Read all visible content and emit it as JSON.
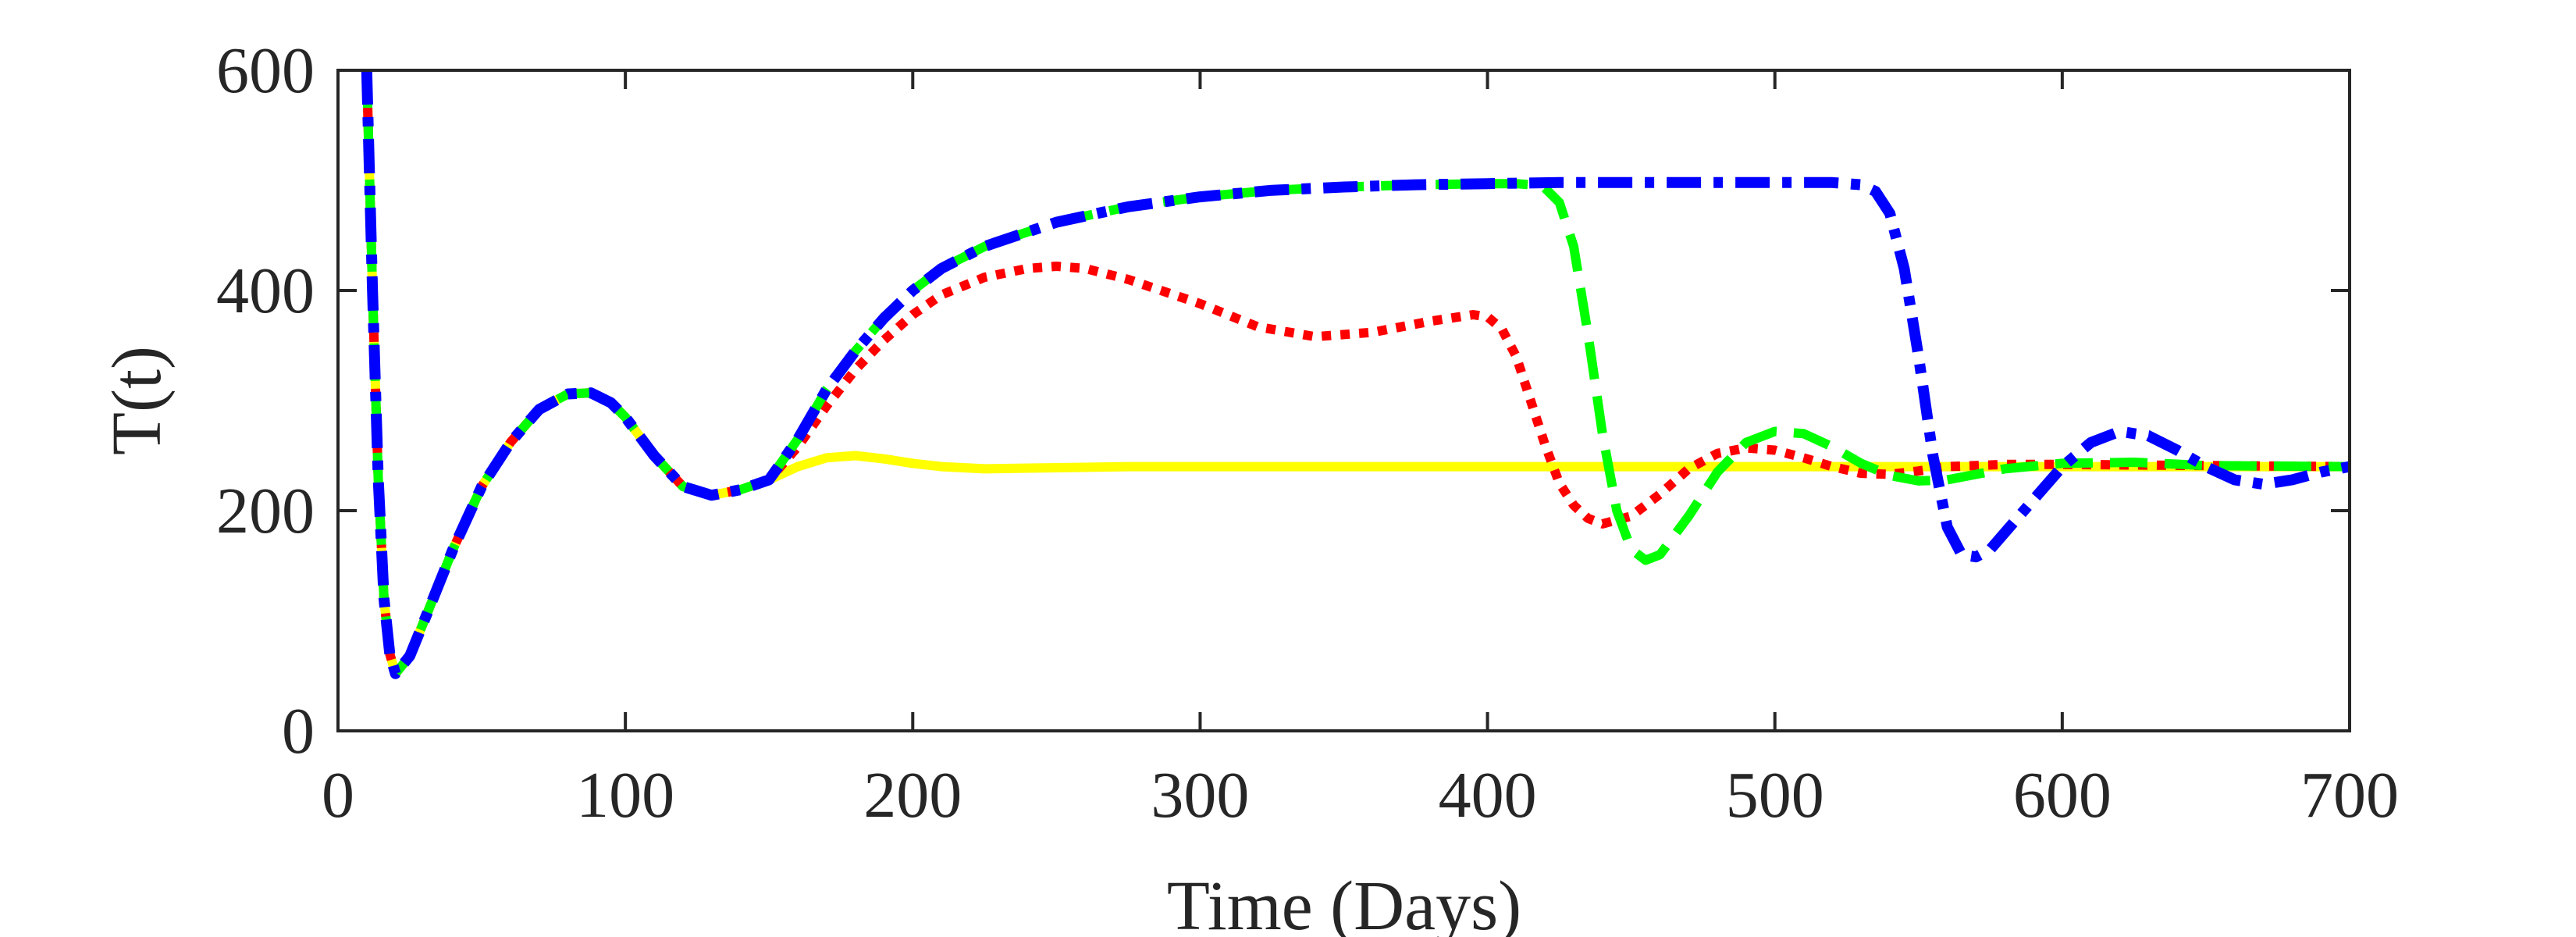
{
  "chart_data": {
    "type": "line",
    "title": "",
    "xlabel": "Time (Days)",
    "ylabel": "T(t)",
    "xlim": [
      0,
      700
    ],
    "ylim": [
      0,
      600
    ],
    "xticks": [
      0,
      100,
      200,
      300,
      400,
      500,
      600,
      700
    ],
    "yticks": [
      0,
      200,
      400,
      600
    ],
    "xtick_labels": [
      "0",
      "100",
      "200",
      "300",
      "400",
      "500",
      "600",
      "700"
    ],
    "ytick_labels": [
      "0",
      "200",
      "400",
      "600"
    ],
    "grid": false,
    "series": [
      {
        "name": "yellow-solid",
        "color": "#ffff00",
        "style": "solid",
        "x": [
          10,
          12,
          14,
          16,
          18,
          20,
          25,
          30,
          40,
          50,
          60,
          70,
          80,
          88,
          95,
          100,
          110,
          120,
          130,
          140,
          150,
          160,
          170,
          180,
          190,
          200,
          210,
          225,
          250,
          275,
          300,
          350,
          400,
          450,
          500,
          550,
          600,
          650,
          700
        ],
        "y": [
          600,
          400,
          230,
          120,
          70,
          52,
          68,
          100,
          165,
          222,
          262,
          292,
          306,
          307,
          298,
          285,
          250,
          222,
          214,
          219,
          228,
          240,
          248,
          250,
          247,
          243,
          240,
          238,
          239,
          240,
          240,
          240,
          240,
          240,
          240,
          240,
          240,
          240,
          240
        ]
      },
      {
        "name": "red-dotted",
        "color": "#ff0000",
        "style": "dotted",
        "x": [
          10,
          12,
          14,
          16,
          18,
          20,
          25,
          30,
          40,
          50,
          60,
          70,
          80,
          88,
          95,
          100,
          110,
          120,
          130,
          140,
          150,
          160,
          170,
          180,
          190,
          200,
          210,
          225,
          240,
          250,
          260,
          275,
          300,
          320,
          340,
          360,
          380,
          395,
          400,
          405,
          410,
          415,
          420,
          425,
          430,
          435,
          440,
          450,
          460,
          470,
          480,
          490,
          500,
          510,
          520,
          530,
          540,
          550,
          560,
          580,
          600,
          650,
          700
        ],
        "y": [
          600,
          400,
          230,
          120,
          70,
          52,
          68,
          100,
          165,
          222,
          262,
          292,
          306,
          307,
          298,
          285,
          250,
          222,
          214,
          219,
          228,
          258,
          295,
          328,
          355,
          378,
          396,
          412,
          420,
          422,
          420,
          410,
          388,
          367,
          358,
          362,
          372,
          378,
          376,
          365,
          340,
          300,
          260,
          225,
          205,
          193,
          188,
          195,
          215,
          238,
          252,
          257,
          255,
          248,
          240,
          234,
          233,
          236,
          240,
          242,
          242,
          241,
          240
        ]
      },
      {
        "name": "green-dashed",
        "color": "#00ff00",
        "style": "dashed",
        "x": [
          10,
          12,
          14,
          16,
          18,
          20,
          25,
          30,
          40,
          50,
          60,
          70,
          80,
          88,
          95,
          100,
          110,
          120,
          130,
          140,
          150,
          160,
          170,
          180,
          190,
          200,
          210,
          225,
          250,
          275,
          300,
          325,
          350,
          375,
          400,
          410,
          415,
          420,
          425,
          430,
          435,
          440,
          445,
          450,
          455,
          460,
          470,
          480,
          490,
          500,
          510,
          520,
          530,
          540,
          550,
          560,
          570,
          580,
          600,
          625,
          650,
          700
        ],
        "y": [
          600,
          400,
          230,
          120,
          70,
          52,
          68,
          100,
          165,
          222,
          262,
          292,
          306,
          307,
          298,
          285,
          250,
          222,
          214,
          219,
          228,
          265,
          310,
          345,
          375,
          400,
          420,
          440,
          462,
          476,
          485,
          491,
          494,
          496,
          497,
          497,
          496,
          493,
          480,
          440,
          360,
          270,
          200,
          165,
          155,
          160,
          195,
          235,
          262,
          272,
          270,
          258,
          243,
          232,
          227,
          228,
          233,
          238,
          243,
          244,
          241,
          240
        ]
      },
      {
        "name": "blue-dashdot",
        "color": "#0000ff",
        "style": "dashdot",
        "x": [
          10,
          12,
          14,
          16,
          18,
          20,
          25,
          30,
          40,
          50,
          60,
          70,
          80,
          88,
          95,
          100,
          110,
          120,
          130,
          140,
          150,
          160,
          170,
          180,
          190,
          200,
          210,
          225,
          250,
          275,
          300,
          325,
          350,
          375,
          400,
          425,
          450,
          475,
          500,
          520,
          530,
          535,
          540,
          545,
          550,
          555,
          560,
          565,
          570,
          575,
          580,
          590,
          600,
          610,
          620,
          630,
          640,
          650,
          660,
          670,
          680,
          690,
          700
        ],
        "y": [
          600,
          400,
          230,
          120,
          70,
          52,
          68,
          100,
          165,
          222,
          262,
          292,
          306,
          307,
          298,
          285,
          250,
          222,
          214,
          219,
          228,
          265,
          310,
          345,
          375,
          400,
          420,
          440,
          462,
          476,
          485,
          491,
          494,
          496,
          497,
          498,
          498,
          498,
          498,
          498,
          496,
          490,
          470,
          420,
          340,
          250,
          185,
          160,
          158,
          165,
          180,
          210,
          240,
          262,
          272,
          268,
          255,
          240,
          228,
          224,
          228,
          235,
          240
        ]
      }
    ]
  }
}
